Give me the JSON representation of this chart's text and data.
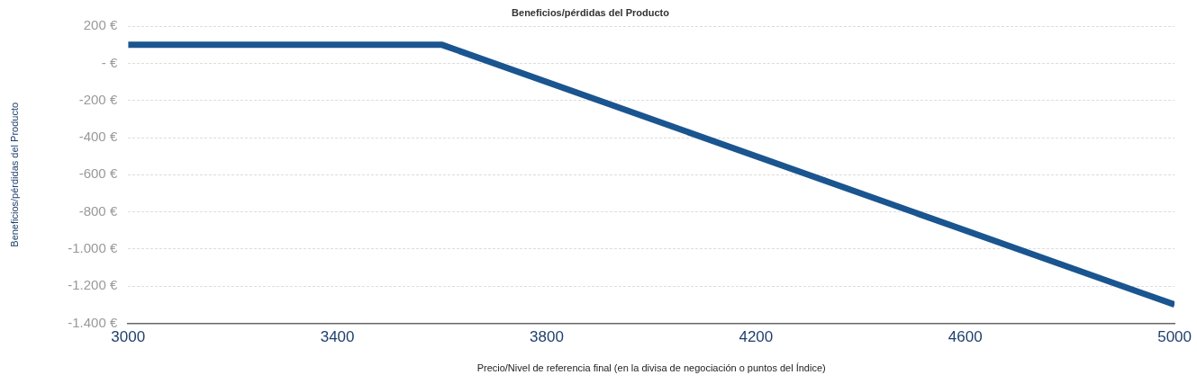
{
  "chart_data": {
    "type": "line",
    "title": "Beneficios/pérdidas del Producto",
    "xlabel": "Precio/Nivel de referencia final (en la divisa de negociación o puntos del Índice)",
    "ylabel": "Beneficios/pérdidas del Producto",
    "x": [
      3000,
      3600,
      5000
    ],
    "series": [
      {
        "color": "#1a5590",
        "values": [
          100,
          100,
          -1300
        ]
      }
    ],
    "xlim": [
      3000,
      5000
    ],
    "xticks": [
      3000,
      3400,
      3800,
      4200,
      4600,
      5000
    ],
    "ylim": [
      -1400,
      200
    ],
    "yticks": [
      {
        "value": 200,
        "label": "200 €"
      },
      {
        "value": 0,
        "label": "- €"
      },
      {
        "value": -200,
        "label": "-200 €"
      },
      {
        "value": -400,
        "label": "-400 €"
      },
      {
        "value": -600,
        "label": "-600 €"
      },
      {
        "value": -800,
        "label": "-800 €"
      },
      {
        "value": -1000,
        "label": "-1.000 €"
      },
      {
        "value": -1200,
        "label": "-1.200 €"
      },
      {
        "value": -1400,
        "label": "-1.400 €"
      }
    ],
    "grid": "y",
    "legend": false,
    "marker": "none",
    "line_style": "solid"
  }
}
